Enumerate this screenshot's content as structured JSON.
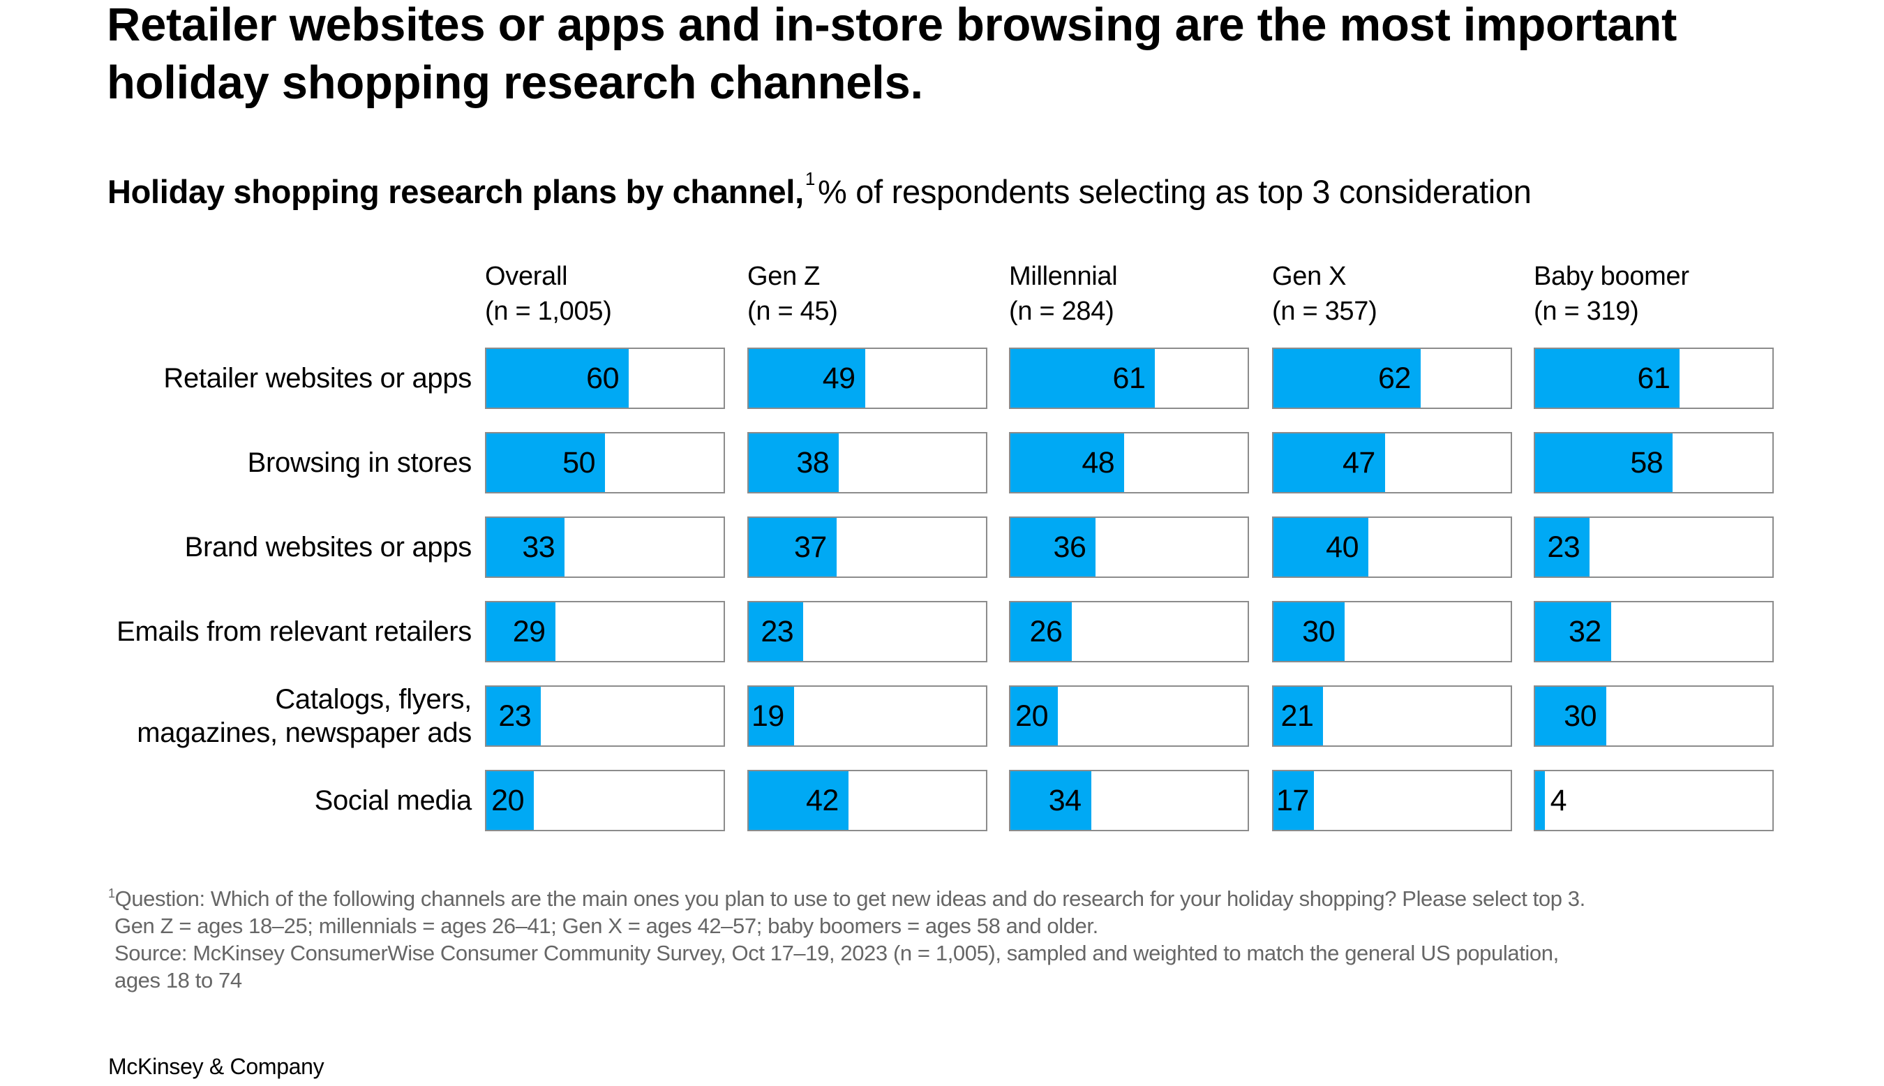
{
  "title": {
    "line1": "Retailer websites or apps and in-store browsing are the most important",
    "line2": "holiday shopping research channels."
  },
  "subtitle": {
    "bold": "Holiday shopping research plans by channel,",
    "footnote_marker": "1",
    "regular": "% of respondents selecting as top 3 consideration"
  },
  "colors": {
    "bar": "#00a9f4",
    "box_border": "#8c8c8c",
    "footnote_text": "#666666"
  },
  "chart_data": {
    "type": "bar",
    "orientation": "horizontal",
    "title": "Holiday shopping research plans by channel",
    "unit": "% of respondents selecting as top 3 consideration",
    "xlim": [
      0,
      100
    ],
    "grid": false,
    "categories": [
      "Retailer websites or apps",
      "Browsing in stores",
      "Brand websites or apps",
      "Emails from relevant retailers",
      "Catalogs, flyers, magazines, newspaper ads",
      "Social media"
    ],
    "category_lines": [
      [
        "Retailer websites or apps"
      ],
      [
        "Browsing in stores"
      ],
      [
        "Brand websites or apps"
      ],
      [
        "Emails from relevant retailers"
      ],
      [
        "Catalogs, flyers,",
        "magazines, newspaper ads"
      ],
      [
        "Social media"
      ]
    ],
    "series": [
      {
        "name": "Overall",
        "n_label": "(n = 1,005)",
        "values": [
          60,
          50,
          33,
          29,
          23,
          20
        ]
      },
      {
        "name": "Gen Z",
        "n_label": "(n = 45)",
        "values": [
          49,
          38,
          37,
          23,
          19,
          42
        ]
      },
      {
        "name": "Millennial",
        "n_label": "(n = 284)",
        "values": [
          61,
          48,
          36,
          26,
          20,
          34
        ]
      },
      {
        "name": "Gen X",
        "n_label": "(n = 357)",
        "values": [
          62,
          47,
          40,
          30,
          21,
          17
        ]
      },
      {
        "name": "Baby boomer",
        "n_label": "(n = 319)",
        "values": [
          61,
          58,
          23,
          32,
          30,
          4
        ]
      }
    ]
  },
  "footnotes": {
    "marker": "1",
    "lines": [
      "Question: Which of the following channels are the main ones you plan to use to get new ideas and do research for your holiday shopping? Please select top 3.",
      "Gen Z = ages 18–25; millennials = ages 26–41; Gen X = ages 42–57; baby boomers = ages 58 and older.",
      "Source: McKinsey ConsumerWise Consumer Community Survey, Oct 17–19, 2023 (n = 1,005), sampled and weighted to match the general US population,",
      "ages 18 to 74"
    ]
  },
  "footer": {
    "brand": "McKinsey & Company"
  }
}
